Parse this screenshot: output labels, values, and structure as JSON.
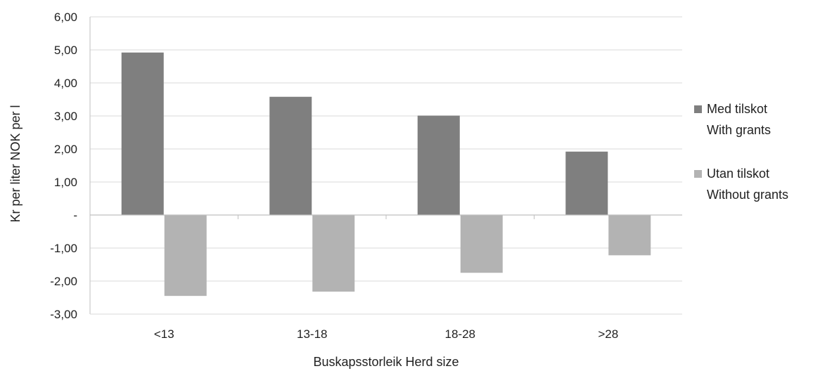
{
  "chart_data": {
    "type": "bar",
    "categories": [
      "<13",
      "13-18",
      "18-28",
      ">28"
    ],
    "series": [
      {
        "name": "Med tilskot With grants",
        "values": [
          4.92,
          3.58,
          3.01,
          1.92
        ],
        "color": "#7f7f7f"
      },
      {
        "name": "Utan tilskot Without grants",
        "values": [
          -2.45,
          -2.32,
          -1.75,
          -1.22
        ],
        "color": "#b3b3b3"
      }
    ],
    "legend": [
      {
        "line1": "Med tilskot",
        "line2": "With grants"
      },
      {
        "line1": "Utan tilskot",
        "line2": "Without grants"
      }
    ],
    "y_ticks": [
      {
        "value": 6,
        "label": "6,00"
      },
      {
        "value": 5,
        "label": "5,00"
      },
      {
        "value": 4,
        "label": "4,00"
      },
      {
        "value": 3,
        "label": "3,00"
      },
      {
        "value": 2,
        "label": "2,00"
      },
      {
        "value": 1,
        "label": "1,00"
      },
      {
        "value": 0,
        "label": "-"
      },
      {
        "value": -1,
        "label": "-1,00"
      },
      {
        "value": -2,
        "label": "-2,00"
      },
      {
        "value": -3,
        "label": "-3,00"
      }
    ],
    "ylim": [
      -3,
      6
    ],
    "ylabel": "Kr per liter   NOK per l",
    "xlabel": "Buskapsstorleik   Herd size",
    "legend_position": "right",
    "grid": true,
    "gridline_color": "#d9d9d9"
  }
}
